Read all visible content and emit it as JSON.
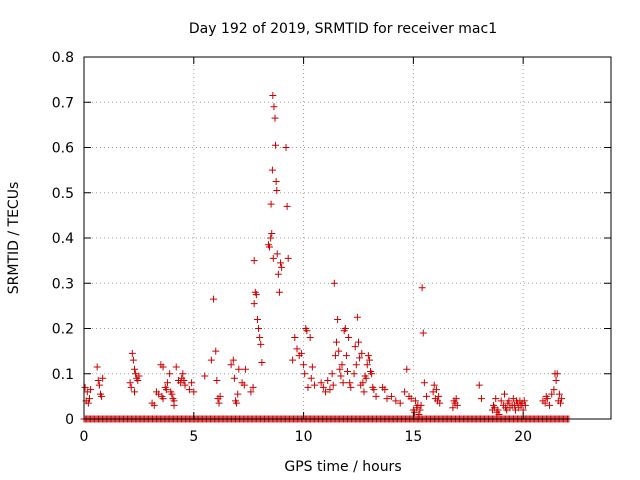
{
  "chart_data": {
    "type": "scatter",
    "title": "Day 192 of 2019, SRMTID for receiver mac1",
    "xlabel": "GPS time / hours",
    "ylabel": "SRMTID / TECUs",
    "xlim": [
      0,
      24
    ],
    "ylim": [
      0,
      0.8
    ],
    "xticks": [
      0,
      5,
      10,
      15,
      20
    ],
    "yticks": [
      0,
      0.1,
      0.2,
      0.3,
      0.4,
      0.5,
      0.6,
      0.7,
      0.8
    ],
    "xtick_labels": [
      "0",
      "5",
      "10",
      "15",
      "20"
    ],
    "ytick_labels": [
      "0",
      "0.1",
      "0.2",
      "0.3",
      "0.4",
      "0.5",
      "0.6",
      "0.7",
      "0.8"
    ],
    "grid": true,
    "marker": "+",
    "color": "#cc0000",
    "baseline_zero_range": [
      0,
      22.1
    ],
    "series": [
      {
        "name": "SRMTID",
        "points": [
          [
            0.05,
            0.07
          ],
          [
            0.1,
            0.04
          ],
          [
            0.15,
            0.06
          ],
          [
            0.2,
            0.035
          ],
          [
            0.25,
            0.045
          ],
          [
            0.3,
            0.065
          ],
          [
            0.6,
            0.115
          ],
          [
            0.65,
            0.085
          ],
          [
            0.7,
            0.075
          ],
          [
            0.75,
            0.055
          ],
          [
            0.8,
            0.05
          ],
          [
            0.85,
            0.09
          ],
          [
            2.1,
            0.08
          ],
          [
            2.15,
            0.07
          ],
          [
            2.2,
            0.145
          ],
          [
            2.25,
            0.13
          ],
          [
            2.3,
            0.11
          ],
          [
            2.35,
            0.1
          ],
          [
            2.4,
            0.09
          ],
          [
            2.45,
            0.085
          ],
          [
            2.5,
            0.095
          ],
          [
            2.3,
            0.06
          ],
          [
            3.1,
            0.035
          ],
          [
            3.2,
            0.03
          ],
          [
            3.3,
            0.06
          ],
          [
            3.4,
            0.055
          ],
          [
            3.5,
            0.12
          ],
          [
            3.55,
            0.05
          ],
          [
            3.6,
            0.045
          ],
          [
            3.7,
            0.07
          ],
          [
            3.75,
            0.065
          ],
          [
            3.8,
            0.08
          ],
          [
            3.9,
            0.1
          ],
          [
            3.95,
            0.06
          ],
          [
            4.0,
            0.055
          ],
          [
            4.05,
            0.045
          ],
          [
            4.1,
            0.03
          ],
          [
            4.2,
            0.115
          ],
          [
            4.3,
            0.085
          ],
          [
            4.4,
            0.08
          ],
          [
            4.45,
            0.09
          ],
          [
            4.5,
            0.1
          ],
          [
            4.55,
            0.085
          ],
          [
            4.6,
            0.075
          ],
          [
            4.8,
            0.065
          ],
          [
            4.9,
            0.08
          ],
          [
            5.0,
            0.06
          ],
          [
            3.6,
            0.115
          ],
          [
            4.1,
            0.04
          ],
          [
            5.5,
            0.095
          ],
          [
            5.8,
            0.13
          ],
          [
            5.9,
            0.265
          ],
          [
            6.0,
            0.15
          ],
          [
            6.05,
            0.085
          ],
          [
            6.1,
            0.045
          ],
          [
            6.15,
            0.035
          ],
          [
            6.2,
            0.05
          ],
          [
            6.7,
            0.12
          ],
          [
            6.8,
            0.13
          ],
          [
            6.85,
            0.09
          ],
          [
            6.9,
            0.04
          ],
          [
            6.95,
            0.035
          ],
          [
            7.0,
            0.055
          ],
          [
            7.05,
            0.11
          ],
          [
            7.2,
            0.08
          ],
          [
            7.3,
            0.075
          ],
          [
            7.35,
            0.11
          ],
          [
            7.6,
            0.06
          ],
          [
            7.7,
            0.07
          ],
          [
            7.75,
            0.35
          ],
          [
            7.8,
            0.28
          ],
          [
            7.85,
            0.275
          ],
          [
            7.9,
            0.22
          ],
          [
            7.95,
            0.2
          ],
          [
            8.0,
            0.18
          ],
          [
            8.05,
            0.165
          ],
          [
            8.1,
            0.125
          ],
          [
            7.75,
            0.255
          ],
          [
            8.4,
            0.385
          ],
          [
            8.45,
            0.38
          ],
          [
            8.5,
            0.4
          ],
          [
            8.52,
            0.475
          ],
          [
            8.55,
            0.41
          ],
          [
            8.58,
            0.55
          ],
          [
            8.6,
            0.715
          ],
          [
            8.62,
            0.355
          ],
          [
            8.65,
            0.69
          ],
          [
            8.7,
            0.665
          ],
          [
            8.72,
            0.605
          ],
          [
            8.75,
            0.525
          ],
          [
            8.78,
            0.505
          ],
          [
            8.8,
            0.365
          ],
          [
            8.85,
            0.32
          ],
          [
            8.9,
            0.28
          ],
          [
            8.95,
            0.345
          ],
          [
            9.0,
            0.335
          ],
          [
            9.2,
            0.6
          ],
          [
            9.25,
            0.47
          ],
          [
            9.3,
            0.355
          ],
          [
            9.5,
            0.13
          ],
          [
            9.6,
            0.18
          ],
          [
            9.7,
            0.155
          ],
          [
            9.8,
            0.14
          ],
          [
            9.9,
            0.145
          ],
          [
            10.0,
            0.12
          ],
          [
            10.05,
            0.1
          ],
          [
            10.1,
            0.2
          ],
          [
            10.15,
            0.195
          ],
          [
            10.2,
            0.07
          ],
          [
            10.3,
            0.18
          ],
          [
            10.35,
            0.09
          ],
          [
            10.4,
            0.115
          ],
          [
            10.5,
            0.075
          ],
          [
            10.8,
            0.08
          ],
          [
            10.9,
            0.07
          ],
          [
            11.0,
            0.06
          ],
          [
            11.1,
            0.085
          ],
          [
            11.2,
            0.065
          ],
          [
            11.3,
            0.1
          ],
          [
            11.35,
            0.075
          ],
          [
            11.4,
            0.3
          ],
          [
            11.45,
            0.14
          ],
          [
            11.5,
            0.17
          ],
          [
            11.55,
            0.22
          ],
          [
            11.6,
            0.15
          ],
          [
            11.65,
            0.11
          ],
          [
            11.7,
            0.095
          ],
          [
            11.75,
            0.12
          ],
          [
            11.8,
            0.08
          ],
          [
            11.85,
            0.195
          ],
          [
            11.9,
            0.2
          ],
          [
            11.95,
            0.14
          ],
          [
            12.0,
            0.105
          ],
          [
            12.05,
            0.18
          ],
          [
            12.1,
            0.08
          ],
          [
            12.15,
            0.07
          ],
          [
            12.3,
            0.1
          ],
          [
            12.35,
            0.16
          ],
          [
            12.4,
            0.12
          ],
          [
            12.45,
            0.225
          ],
          [
            12.5,
            0.17
          ],
          [
            12.55,
            0.135
          ],
          [
            12.6,
            0.075
          ],
          [
            12.65,
            0.145
          ],
          [
            12.7,
            0.08
          ],
          [
            12.75,
            0.06
          ],
          [
            12.8,
            0.095
          ],
          [
            12.85,
            0.09
          ],
          [
            12.9,
            0.12
          ],
          [
            12.95,
            0.14
          ],
          [
            13.0,
            0.13
          ],
          [
            13.05,
            0.105
          ],
          [
            13.1,
            0.1
          ],
          [
            13.15,
            0.07
          ],
          [
            13.2,
            0.065
          ],
          [
            13.3,
            0.05
          ],
          [
            13.6,
            0.07
          ],
          [
            13.7,
            0.065
          ],
          [
            13.8,
            0.045
          ],
          [
            14.0,
            0.05
          ],
          [
            14.2,
            0.04
          ],
          [
            14.4,
            0.035
          ],
          [
            14.6,
            0.06
          ],
          [
            14.7,
            0.11
          ],
          [
            14.8,
            0.05
          ],
          [
            14.9,
            0.045
          ],
          [
            15.0,
            0.02
          ],
          [
            15.05,
            0.015
          ],
          [
            15.1,
            0.04
          ],
          [
            15.15,
            0.025
          ],
          [
            15.2,
            0.03
          ],
          [
            15.25,
            0.01
          ],
          [
            15.3,
            0.02
          ],
          [
            15.35,
            0.03
          ],
          [
            15.4,
            0.29
          ],
          [
            15.45,
            0.19
          ],
          [
            15.5,
            0.08
          ],
          [
            15.6,
            0.05
          ],
          [
            15.9,
            0.06
          ],
          [
            15.95,
            0.075
          ],
          [
            16.0,
            0.045
          ],
          [
            16.05,
            0.065
          ],
          [
            16.1,
            0.04
          ],
          [
            16.15,
            0.05
          ],
          [
            16.2,
            0.035
          ],
          [
            16.8,
            0.025
          ],
          [
            16.85,
            0.04
          ],
          [
            16.9,
            0.035
          ],
          [
            16.95,
            0.045
          ],
          [
            17.0,
            0.03
          ],
          [
            18.0,
            0.075
          ],
          [
            18.1,
            0.045
          ],
          [
            18.6,
            0.02
          ],
          [
            18.65,
            0.03
          ],
          [
            18.7,
            0.025
          ],
          [
            18.75,
            0.045
          ],
          [
            18.8,
            0.015
          ],
          [
            18.85,
            0.02
          ],
          [
            18.9,
            0.01
          ],
          [
            19.0,
            0.04
          ],
          [
            19.1,
            0.03
          ],
          [
            19.15,
            0.055
          ],
          [
            19.2,
            0.025
          ],
          [
            19.25,
            0.02
          ],
          [
            19.3,
            0.035
          ],
          [
            19.35,
            0.04
          ],
          [
            19.4,
            0.025
          ],
          [
            19.5,
            0.03
          ],
          [
            19.55,
            0.045
          ],
          [
            19.6,
            0.03
          ],
          [
            19.65,
            0.02
          ],
          [
            19.7,
            0.04
          ],
          [
            19.75,
            0.035
          ],
          [
            19.8,
            0.025
          ],
          [
            19.85,
            0.04
          ],
          [
            19.9,
            0.03
          ],
          [
            19.95,
            0.035
          ],
          [
            20.0,
            0.02
          ],
          [
            20.05,
            0.04
          ],
          [
            20.1,
            0.03
          ],
          [
            20.9,
            0.04
          ],
          [
            21.0,
            0.035
          ],
          [
            21.05,
            0.05
          ],
          [
            21.1,
            0.045
          ],
          [
            21.2,
            0.03
          ],
          [
            21.3,
            0.055
          ],
          [
            21.4,
            0.065
          ],
          [
            21.45,
            0.1
          ],
          [
            21.5,
            0.085
          ],
          [
            21.55,
            0.1
          ],
          [
            21.6,
            0.04
          ],
          [
            21.65,
            0.055
          ],
          [
            21.7,
            0.035
          ],
          [
            21.75,
            0.045
          ]
        ]
      }
    ]
  }
}
